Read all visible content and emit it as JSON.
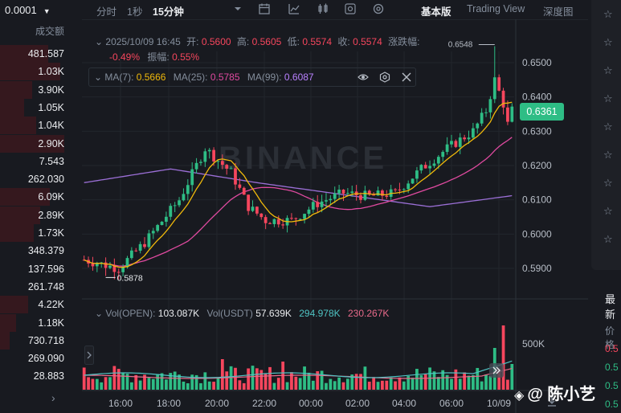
{
  "left": {
    "tick_size": "0.0001",
    "header": "成交额",
    "volumes": [
      "481.587",
      "1.03K",
      "3.90K",
      "1.05K",
      "1.04K",
      "2.90K",
      "7.543",
      "262.030",
      "6.09K",
      "2.89K",
      "1.73K",
      "348.379",
      "137.596",
      "261.748",
      "4.22K",
      "1.18K",
      "730.718",
      "269.090",
      "28.883"
    ],
    "more_icon": "chevron-right-icon"
  },
  "toolbar": {
    "time_label": "分时",
    "one_sec": "1秒",
    "fifteen_min": "15分钟",
    "basic": "基本版",
    "tradingview": "Trading View",
    "depth": "深度图"
  },
  "ohlc": {
    "date": "2025/10/09 16:45",
    "open_label": "开:",
    "open": "0.5600",
    "high_label": "高:",
    "high": "0.5605",
    "low_label": "低:",
    "low": "0.5574",
    "close_label": "收:",
    "close": "0.5574",
    "change_label": "涨跌幅:",
    "change": "-0.49%",
    "amp_label": "振幅:",
    "amp": "0.55%"
  },
  "ma": {
    "ma7_label": "MA(7):",
    "ma7": "0.5666",
    "ma25_label": "MA(25):",
    "ma25": "0.5785",
    "ma99_label": "MA(99):",
    "ma99": "0.6087"
  },
  "volume_legend": {
    "open_label": "Vol(OPEN):",
    "open": "103.087K",
    "usdt_label": "Vol(USDT)",
    "usdt": "57.639K",
    "v2": "294.978K",
    "v3": "230.267K"
  },
  "price_axis": [
    "0.6500",
    "0.6400",
    "0.6300",
    "0.6200",
    "0.6100",
    "0.6000",
    "0.5900"
  ],
  "current_price": "0.6361",
  "high_marker": "0.6548",
  "low_marker": "0.5878",
  "vol_axis": "500K",
  "time_axis": [
    "16:00",
    "18:00",
    "20:00",
    "22:00",
    "00:00",
    "02:00",
    "04:00",
    "06:00",
    "10/09"
  ],
  "watermark_brand": "BINANCE",
  "right": {
    "label": "最新",
    "price_label": "价格",
    "price_values": [
      "0.5",
      "0.5",
      "0.5",
      "0.5"
    ],
    "price_colors": [
      "#f6465d",
      "#2ebd85",
      "#2ebd85",
      "#2ebd85"
    ]
  },
  "watermark": {
    "name": "@ 陈小艺"
  },
  "colors": {
    "up": "#2ebd85",
    "down": "#f6465d",
    "ma7": "#f0b90b",
    "ma25": "#e04aa0",
    "ma99": "#9b6fd6"
  }
}
